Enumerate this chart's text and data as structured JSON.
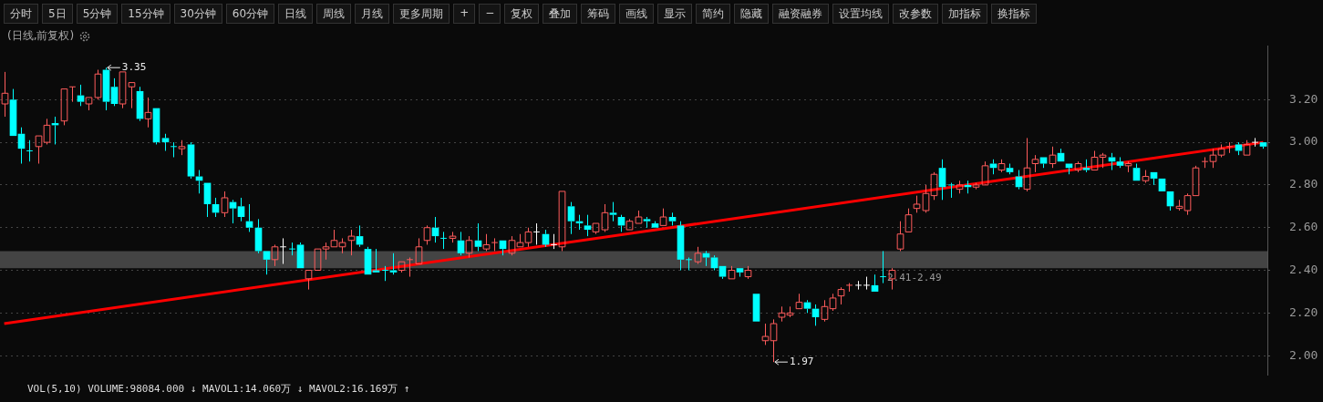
{
  "chart_data": {
    "type": "candlestick",
    "title": "(日线,前复权)",
    "subtitle": "VOL(5,10) VOLUME:98084.000 ↓ MAVOL1:14.060万 ↓ MAVOL2:16.169万 ↑",
    "annotations": [
      "分时",
      "5日",
      "5分钟",
      "15分钟",
      "30分钟",
      "60分钟",
      "日线",
      "周线",
      "月线",
      "更多周期",
      "+",
      "−",
      "复权",
      "叠加",
      "筹码",
      "画线",
      "显示",
      "简约",
      "隐藏",
      "融资融券",
      "设置均线",
      "改参数",
      "加指标",
      "换指标",
      "3.35",
      "1.97"
    ],
    "categories": [
      null,
      null,
      null,
      null,
      null,
      null,
      null,
      null,
      null,
      null,
      null,
      null,
      null,
      null,
      null,
      null,
      null,
      null,
      null,
      null,
      null,
      null,
      null,
      null,
      null,
      null,
      null,
      null,
      null,
      null,
      null,
      null,
      null,
      null,
      null,
      null,
      null,
      null,
      null,
      null,
      null,
      null,
      null,
      null,
      null,
      null,
      null,
      null,
      null,
      null,
      null,
      null,
      null,
      null,
      null,
      null,
      null,
      null,
      null,
      null,
      null,
      null,
      null,
      null,
      null,
      null,
      null,
      null,
      null,
      null,
      null,
      null,
      null,
      null,
      null,
      null,
      null,
      null,
      null,
      null,
      null,
      null,
      null,
      null,
      null,
      null,
      null,
      null,
      null,
      null,
      null,
      null,
      null,
      null,
      null,
      null,
      null,
      null,
      null,
      null,
      null,
      null,
      null,
      null,
      null,
      null,
      null,
      null,
      null,
      null,
      null,
      null,
      null,
      null,
      null,
      null,
      null,
      null,
      null,
      null,
      null,
      null,
      null,
      null,
      null,
      null,
      null,
      null,
      null,
      null,
      null,
      null,
      null,
      null,
      null,
      null,
      null,
      null,
      null,
      null,
      null,
      null,
      null,
      null,
      null,
      null,
      null,
      null,
      null,
      null
    ],
    "ohlc": [
      [
        3.18,
        3.33,
        3.12,
        3.23
      ],
      [
        3.2,
        3.25,
        3.03,
        3.03
      ],
      [
        3.04,
        3.07,
        2.9,
        2.97
      ],
      [
        2.96,
        3.01,
        2.91,
        2.96
      ],
      [
        2.98,
        3.03,
        2.9,
        3.03
      ],
      [
        3.0,
        3.11,
        2.99,
        3.08
      ],
      [
        3.09,
        3.12,
        2.99,
        3.08
      ],
      [
        3.1,
        3.25,
        3.08,
        3.25
      ],
      [
        3.26,
        3.26,
        3.19,
        3.26
      ],
      [
        3.22,
        3.27,
        3.17,
        3.19
      ],
      [
        3.18,
        3.21,
        3.15,
        3.21
      ],
      [
        3.21,
        3.34,
        3.2,
        3.32
      ],
      [
        3.34,
        3.35,
        3.15,
        3.19
      ],
      [
        3.26,
        3.3,
        3.17,
        3.18
      ],
      [
        3.18,
        3.33,
        3.16,
        3.33
      ],
      [
        3.26,
        3.28,
        3.16,
        3.28
      ],
      [
        3.24,
        3.26,
        3.1,
        3.11
      ],
      [
        3.11,
        3.21,
        3.07,
        3.14
      ],
      [
        3.16,
        3.16,
        2.99,
        3.0
      ],
      [
        3.02,
        3.04,
        2.96,
        3.0
      ],
      [
        2.98,
        3.0,
        2.93,
        2.98
      ],
      [
        2.97,
        3.01,
        2.94,
        2.98
      ],
      [
        2.99,
        3.0,
        2.83,
        2.84
      ],
      [
        2.84,
        2.87,
        2.76,
        2.82
      ],
      [
        2.81,
        2.81,
        2.65,
        2.71
      ],
      [
        2.71,
        2.74,
        2.65,
        2.67
      ],
      [
        2.67,
        2.77,
        2.65,
        2.74
      ],
      [
        2.72,
        2.73,
        2.62,
        2.69
      ],
      [
        2.7,
        2.74,
        2.63,
        2.65
      ],
      [
        2.63,
        2.71,
        2.58,
        2.6
      ],
      [
        2.6,
        2.64,
        2.48,
        2.49
      ],
      [
        2.49,
        2.49,
        2.38,
        2.45
      ],
      [
        2.45,
        2.52,
        2.42,
        2.51
      ],
      [
        2.51,
        2.55,
        2.43,
        2.51
      ],
      [
        2.5,
        2.53,
        2.47,
        2.5
      ],
      [
        2.52,
        2.53,
        2.41,
        2.41
      ],
      [
        2.36,
        2.4,
        2.31,
        2.4
      ],
      [
        2.4,
        2.5,
        2.4,
        2.5
      ],
      [
        2.5,
        2.53,
        2.45,
        2.51
      ],
      [
        2.51,
        2.59,
        2.51,
        2.54
      ],
      [
        2.51,
        2.55,
        2.48,
        2.53
      ],
      [
        2.54,
        2.59,
        2.47,
        2.56
      ],
      [
        2.56,
        2.61,
        2.51,
        2.52
      ],
      [
        2.5,
        2.51,
        2.38,
        2.38
      ],
      [
        2.4,
        2.5,
        2.39,
        2.39
      ],
      [
        2.4,
        2.42,
        2.35,
        2.4
      ],
      [
        2.4,
        2.48,
        2.38,
        2.39
      ],
      [
        2.4,
        2.44,
        2.39,
        2.44
      ],
      [
        2.45,
        2.46,
        2.37,
        2.45
      ],
      [
        2.43,
        2.55,
        2.43,
        2.51
      ],
      [
        2.54,
        2.61,
        2.52,
        2.6
      ],
      [
        2.6,
        2.65,
        2.53,
        2.56
      ],
      [
        2.55,
        2.58,
        2.5,
        2.55
      ],
      [
        2.55,
        2.58,
        2.53,
        2.56
      ],
      [
        2.54,
        2.58,
        2.47,
        2.48
      ],
      [
        2.48,
        2.56,
        2.46,
        2.54
      ],
      [
        2.54,
        2.62,
        2.49,
        2.51
      ],
      [
        2.5,
        2.57,
        2.49,
        2.52
      ],
      [
        2.53,
        2.55,
        2.49,
        2.53
      ],
      [
        2.54,
        2.54,
        2.47,
        2.5
      ],
      [
        2.48,
        2.56,
        2.47,
        2.54
      ],
      [
        2.51,
        2.57,
        2.51,
        2.53
      ],
      [
        2.53,
        2.6,
        2.51,
        2.58
      ],
      [
        2.58,
        2.62,
        2.52,
        2.58
      ],
      [
        2.57,
        2.59,
        2.51,
        2.52
      ],
      [
        2.52,
        2.57,
        2.5,
        2.52
      ],
      [
        2.51,
        2.77,
        2.49,
        2.77
      ],
      [
        2.7,
        2.72,
        2.57,
        2.63
      ],
      [
        2.63,
        2.66,
        2.59,
        2.62
      ],
      [
        2.61,
        2.66,
        2.56,
        2.59
      ],
      [
        2.58,
        2.62,
        2.57,
        2.62
      ],
      [
        2.59,
        2.71,
        2.58,
        2.67
      ],
      [
        2.67,
        2.72,
        2.63,
        2.66
      ],
      [
        2.65,
        2.66,
        2.58,
        2.61
      ],
      [
        2.59,
        2.64,
        2.59,
        2.63
      ],
      [
        2.62,
        2.68,
        2.62,
        2.65
      ],
      [
        2.64,
        2.65,
        2.6,
        2.63
      ],
      [
        2.62,
        2.63,
        2.6,
        2.6
      ],
      [
        2.61,
        2.69,
        2.61,
        2.65
      ],
      [
        2.65,
        2.67,
        2.61,
        2.63
      ],
      [
        2.61,
        2.63,
        2.4,
        2.45
      ],
      [
        2.45,
        2.46,
        2.4,
        2.45
      ],
      [
        2.44,
        2.51,
        2.43,
        2.48
      ],
      [
        2.48,
        2.49,
        2.42,
        2.46
      ],
      [
        2.46,
        2.47,
        2.4,
        2.41
      ],
      [
        2.42,
        2.42,
        2.36,
        2.37
      ],
      [
        2.36,
        2.42,
        2.36,
        2.4
      ],
      [
        2.41,
        2.41,
        2.37,
        2.39
      ],
      [
        2.37,
        2.42,
        2.36,
        2.4
      ],
      [
        2.29,
        2.29,
        2.16,
        2.16
      ],
      [
        2.07,
        2.15,
        2.05,
        2.09
      ],
      [
        2.07,
        2.17,
        1.97,
        2.15
      ],
      [
        2.18,
        2.23,
        2.16,
        2.2
      ],
      [
        2.19,
        2.23,
        2.18,
        2.2
      ],
      [
        2.22,
        2.29,
        2.22,
        2.25
      ],
      [
        2.25,
        2.26,
        2.2,
        2.22
      ],
      [
        2.22,
        2.24,
        2.14,
        2.18
      ],
      [
        2.17,
        2.26,
        2.16,
        2.23
      ],
      [
        2.22,
        2.29,
        2.21,
        2.27
      ],
      [
        2.28,
        2.32,
        2.24,
        2.31
      ],
      [
        2.33,
        2.34,
        2.3,
        2.33
      ],
      [
        2.33,
        2.35,
        2.31,
        2.33
      ],
      [
        2.33,
        2.37,
        2.31,
        2.33
      ],
      [
        2.33,
        2.38,
        2.3,
        2.3
      ],
      [
        2.37,
        2.49,
        2.34,
        2.37
      ],
      [
        2.36,
        2.41,
        2.31,
        2.4
      ],
      [
        2.5,
        2.63,
        2.49,
        2.57
      ],
      [
        2.58,
        2.69,
        2.58,
        2.66
      ],
      [
        2.69,
        2.75,
        2.67,
        2.71
      ],
      [
        2.68,
        2.8,
        2.67,
        2.76
      ],
      [
        2.75,
        2.86,
        2.73,
        2.85
      ],
      [
        2.88,
        2.92,
        2.73,
        2.79
      ],
      [
        2.8,
        2.81,
        2.74,
        2.8
      ],
      [
        2.78,
        2.82,
        2.76,
        2.8
      ],
      [
        2.8,
        2.82,
        2.76,
        2.79
      ],
      [
        2.79,
        2.81,
        2.78,
        2.8
      ],
      [
        2.8,
        2.91,
        2.8,
        2.89
      ],
      [
        2.9,
        2.92,
        2.85,
        2.88
      ],
      [
        2.87,
        2.92,
        2.86,
        2.9
      ],
      [
        2.88,
        2.9,
        2.85,
        2.86
      ],
      [
        2.84,
        2.87,
        2.78,
        2.79
      ],
      [
        2.78,
        3.02,
        2.77,
        2.88
      ],
      [
        2.9,
        2.94,
        2.86,
        2.92
      ],
      [
        2.93,
        2.93,
        2.88,
        2.9
      ],
      [
        2.9,
        2.98,
        2.88,
        2.94
      ],
      [
        2.95,
        2.97,
        2.91,
        2.91
      ],
      [
        2.9,
        2.9,
        2.85,
        2.88
      ],
      [
        2.87,
        2.91,
        2.86,
        2.9
      ],
      [
        2.88,
        2.92,
        2.86,
        2.87
      ],
      [
        2.87,
        2.96,
        2.87,
        2.93
      ],
      [
        2.93,
        2.95,
        2.88,
        2.94
      ],
      [
        2.93,
        2.95,
        2.87,
        2.91
      ],
      [
        2.91,
        2.93,
        2.88,
        2.89
      ],
      [
        2.89,
        2.91,
        2.86,
        2.9
      ],
      [
        2.88,
        2.9,
        2.82,
        2.82
      ],
      [
        2.82,
        2.87,
        2.81,
        2.84
      ],
      [
        2.86,
        2.86,
        2.8,
        2.83
      ],
      [
        2.83,
        2.83,
        2.77,
        2.77
      ],
      [
        2.77,
        2.77,
        2.68,
        2.7
      ],
      [
        2.69,
        2.73,
        2.68,
        2.7
      ],
      [
        2.68,
        2.76,
        2.66,
        2.75
      ],
      [
        2.75,
        2.89,
        2.75,
        2.88
      ],
      [
        2.91,
        2.93,
        2.88,
        2.91
      ],
      [
        2.91,
        2.97,
        2.88,
        2.94
      ],
      [
        2.94,
        2.99,
        2.93,
        2.97
      ],
      [
        2.98,
        3.0,
        2.95,
        2.98
      ],
      [
        2.99,
        3.0,
        2.94,
        2.96
      ],
      [
        2.94,
        3.01,
        2.94,
        2.99
      ],
      [
        3.0,
        3.02,
        2.98,
        3.0
      ],
      [
        3.0,
        3.0,
        2.97,
        2.98
      ]
    ],
    "colors": [
      "#ff5c5c",
      "#00ffff",
      "#00ffff",
      "#00ffff",
      "#ff5c5c",
      "#ff5c5c",
      "#00ffff",
      "#ff5c5c",
      "#ff5c5c",
      "#00ffff",
      "#ff5c5c",
      "#ff5c5c",
      "#00ffff",
      "#00ffff",
      "#ff5c5c",
      "#ff5c5c",
      "#00ffff",
      "#ff5c5c",
      "#00ffff",
      "#00ffff",
      "#00ffff",
      "#ff5c5c",
      "#00ffff",
      "#00ffff",
      "#00ffff",
      "#00ffff",
      "#ff5c5c",
      "#00ffff",
      "#00ffff",
      "#00ffff",
      "#00ffff",
      "#00ffff",
      "#ff5c5c",
      "#ffffff",
      "#00ffff",
      "#00ffff",
      "#ff5c5c",
      "#ff5c5c",
      "#ff5c5c",
      "#ff5c5c",
      "#ff5c5c",
      "#ff5c5c",
      "#00ffff",
      "#00ffff",
      "#00ffff",
      "#00ffff",
      "#00ffff",
      "#ff5c5c",
      "#ff5c5c",
      "#ff5c5c",
      "#ff5c5c",
      "#00ffff",
      "#00ffff",
      "#ff5c5c",
      "#00ffff",
      "#ff5c5c",
      "#00ffff",
      "#ff5c5c",
      "#ff5c5c",
      "#00ffff",
      "#ff5c5c",
      "#ff5c5c",
      "#ff5c5c",
      "#ffffff",
      "#00ffff",
      "#ffffff",
      "#ff5c5c",
      "#00ffff",
      "#00ffff",
      "#00ffff",
      "#ff5c5c",
      "#ff5c5c",
      "#00ffff",
      "#00ffff",
      "#ff5c5c",
      "#ff5c5c",
      "#00ffff",
      "#00ffff",
      "#ff5c5c",
      "#00ffff",
      "#00ffff",
      "#00ffff",
      "#ff5c5c",
      "#00ffff",
      "#00ffff",
      "#00ffff",
      "#ff5c5c",
      "#00ffff",
      "#ff5c5c",
      "#00ffff",
      "#ff5c5c",
      "#ff5c5c",
      "#ff5c5c",
      "#ff5c5c",
      "#ff5c5c",
      "#00ffff",
      "#00ffff",
      "#ff5c5c",
      "#ff5c5c",
      "#ff5c5c",
      "#ff5c5c",
      "#ffffff",
      "#ffffff",
      "#00ffff",
      "#00ffff",
      "#ff5c5c",
      "#ff5c5c",
      "#ff5c5c",
      "#ff5c5c",
      "#ff5c5c",
      "#ff5c5c",
      "#00ffff",
      "#00ffff",
      "#ff5c5c",
      "#00ffff",
      "#ff5c5c",
      "#ff5c5c",
      "#00ffff",
      "#ff5c5c",
      "#00ffff",
      "#00ffff",
      "#ff5c5c",
      "#ff5c5c",
      "#00ffff",
      "#ff5c5c",
      "#00ffff",
      "#00ffff",
      "#ff5c5c",
      "#00ffff",
      "#ff5c5c",
      "#ff5c5c",
      "#00ffff",
      "#00ffff",
      "#ff5c5c",
      "#00ffff",
      "#ff5c5c",
      "#00ffff",
      "#00ffff",
      "#00ffff",
      "#ff5c5c",
      "#ff5c5c",
      "#ff5c5c",
      "#ff5c5c",
      "#ff5c5c",
      "#ff5c5c",
      "#ff5c5c",
      "#00ffff",
      "#ff5c5c",
      "#ffffff",
      "#00ffff"
    ],
    "series": [
      {
        "type": "line",
        "color": "#ff0000",
        "values": [
          2.15,
          null,
          null,
          null,
          null,
          null,
          null,
          null,
          null,
          null,
          null,
          null,
          null,
          null,
          null,
          null,
          null,
          null,
          null,
          null,
          null,
          null,
          null,
          null,
          null,
          null,
          null,
          null,
          null,
          null,
          null,
          null,
          null,
          null,
          null,
          null,
          null,
          null,
          null,
          null,
          null,
          null,
          null,
          null,
          null,
          null,
          null,
          null,
          null,
          null,
          null,
          null,
          null,
          null,
          null,
          null,
          null,
          null,
          null,
          null,
          null,
          null,
          null,
          null,
          null,
          null,
          null,
          null,
          null,
          null,
          null,
          null,
          null,
          null,
          null,
          null,
          null,
          null,
          null,
          null,
          null,
          null,
          null,
          null,
          null,
          null,
          null,
          null,
          null,
          null,
          null,
          null,
          null,
          null,
          null,
          null,
          null,
          null,
          null,
          null,
          null,
          null,
          null,
          null,
          null,
          null,
          null,
          null,
          null,
          null,
          null,
          null,
          null,
          null,
          null,
          null,
          null,
          null,
          null,
          null,
          null,
          null,
          null,
          null,
          null,
          null,
          null,
          null,
          null,
          null,
          null,
          null,
          null,
          null,
          null,
          null,
          null,
          null,
          null,
          null,
          null,
          null,
          null,
          null,
          null,
          null,
          null,
          null,
          null,
          3.0
        ]
      }
    ],
    "bands": [
      {
        "axis": "y",
        "from": 2.41,
        "to": 2.49,
        "label": "2.41-2.49",
        "color": "#444444"
      }
    ],
    "ylim": [
      1.91,
      3.45
    ],
    "yticks": [
      {
        "value": 2.0,
        "label": "2.00"
      },
      {
        "value": 2.2,
        "label": "2.20"
      },
      {
        "value": 2.4,
        "label": "2.40"
      },
      {
        "value": 2.6,
        "label": "2.60"
      },
      {
        "value": 2.8,
        "label": "2.80"
      },
      {
        "value": 3.0,
        "label": "3.00"
      },
      {
        "value": 3.2,
        "label": "3.20"
      }
    ],
    "grid": "y",
    "legend": false
  }
}
